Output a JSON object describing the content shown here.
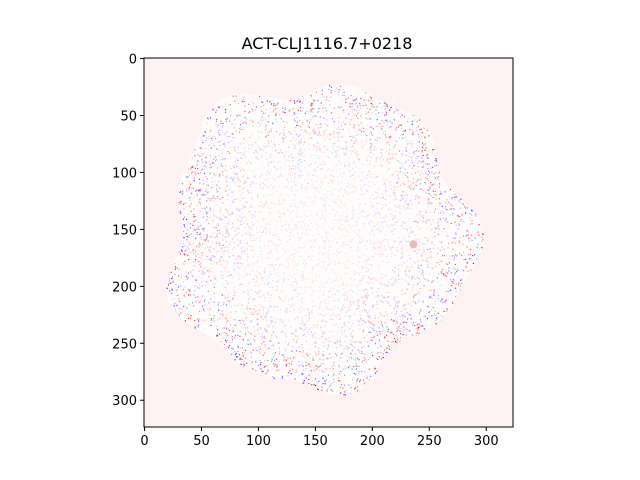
{
  "chart_data": {
    "type": "heatmap",
    "title": "ACT-CLJ1116.7+0218",
    "xlabel": "",
    "ylabel": "",
    "xlim": [
      -0.5,
      323.5
    ],
    "ylim": [
      323.5,
      -0.5
    ],
    "x_ticks": [
      0,
      50,
      100,
      150,
      200,
      250,
      300
    ],
    "y_ticks": [
      0,
      50,
      100,
      150,
      200,
      250,
      300
    ],
    "grid": false,
    "colormap": "bwr",
    "colors": {
      "background_pixel": "#fff2f2",
      "positive": "#ff0000",
      "negative": "#0000ff",
      "neutral": "#ffffff"
    },
    "features": {
      "noise_region_center": [
        152,
        155
      ],
      "noise_region_radius_mean": 132,
      "point_source_center": [
        236,
        163
      ]
    }
  }
}
